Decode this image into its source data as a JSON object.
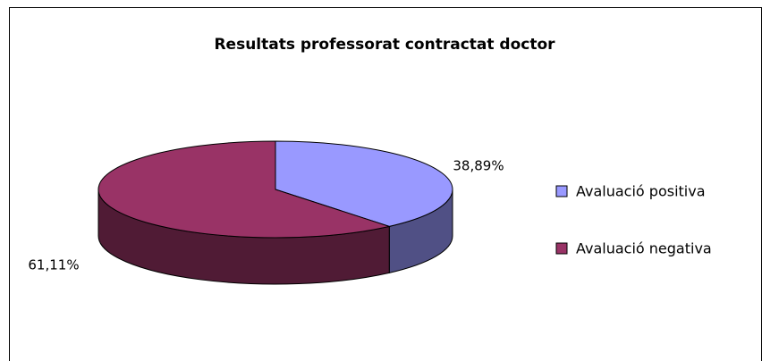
{
  "chart_data": {
    "type": "pie",
    "title": "Resultats professorat contractat doctor",
    "categories": [
      "Avaluació positiva",
      "Avaluació negativa"
    ],
    "values": [
      38.89,
      61.11
    ],
    "value_labels": [
      "38,89%",
      "61,11%"
    ],
    "colors": [
      "#9999ff",
      "#993366"
    ],
    "legend": "right"
  }
}
